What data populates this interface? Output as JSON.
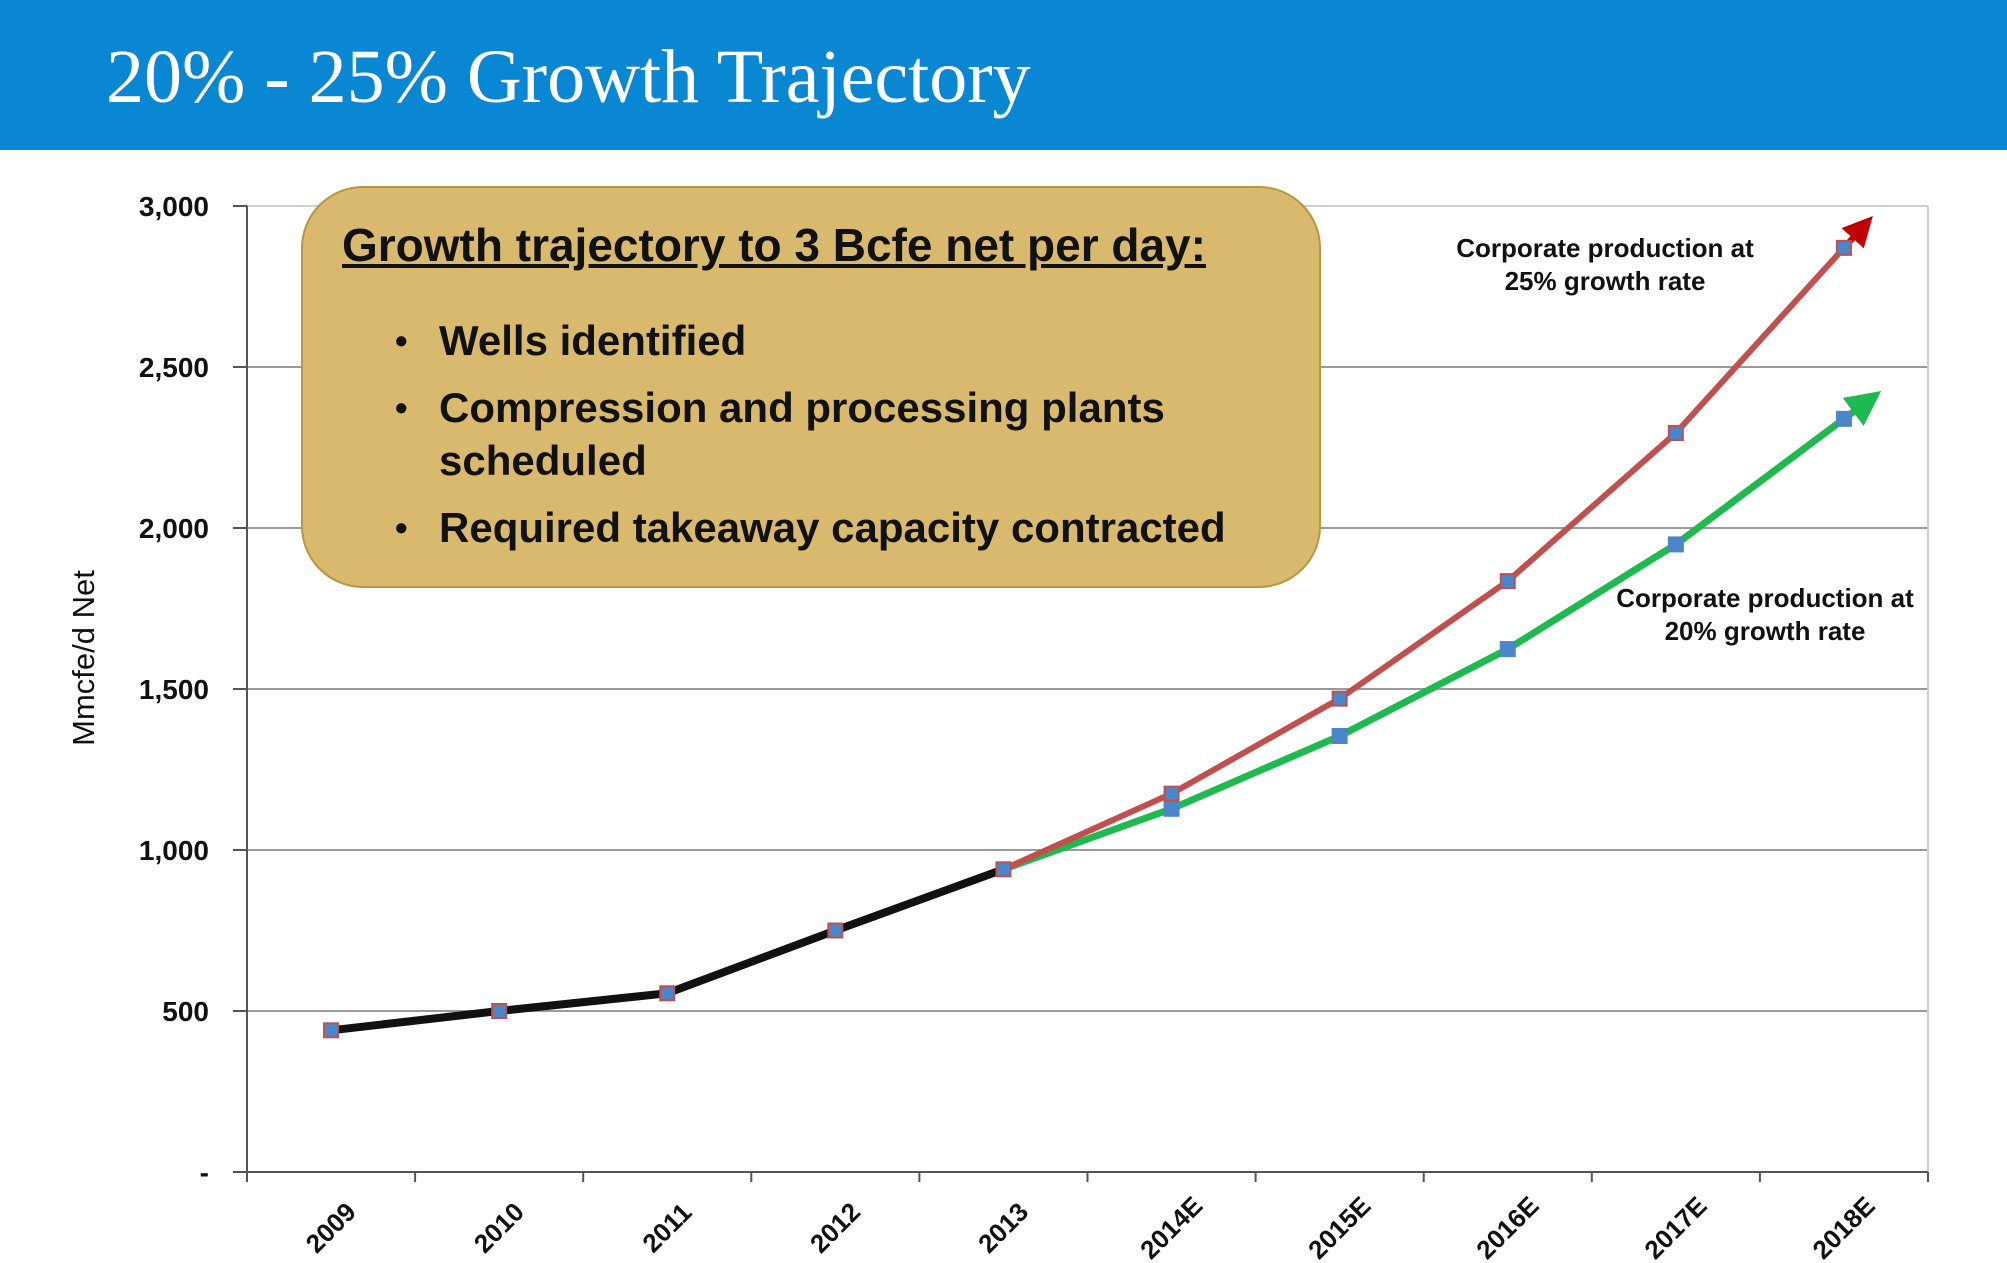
{
  "header": {
    "title": "20% - 25% Growth Trajectory"
  },
  "callout": {
    "heading": "Growth trajectory to 3 Bcfe net per day:",
    "items": [
      "Wells identified",
      "Compression and processing plants scheduled",
      "Required takeaway capacity contracted"
    ]
  },
  "annotations": {
    "rate_25": "Corporate production at 25% growth rate",
    "rate_20": "Corporate production at 20% growth rate"
  },
  "colors": {
    "title_bar": "#0a87d2",
    "historical_line": "#111111",
    "rate_25_line": "#c0504d",
    "rate_20_line": "#1fba4f",
    "marker_fill": "#4a86c8",
    "callout_fill": "#d9b96e"
  },
  "chart_data": {
    "type": "line",
    "ylabel": "Mmcfe/d Net",
    "xlabel": "",
    "ylim": [
      0,
      3000
    ],
    "y_ticks": [
      {
        "value": 0,
        "label": "-"
      },
      {
        "value": 500,
        "label": "500"
      },
      {
        "value": 1000,
        "label": "1,000"
      },
      {
        "value": 1500,
        "label": "1,500"
      },
      {
        "value": 2000,
        "label": "2,000"
      },
      {
        "value": 2500,
        "label": "2,500"
      },
      {
        "value": 3000,
        "label": "3,000"
      }
    ],
    "grid": true,
    "categories": [
      "2009",
      "2010",
      "2011",
      "2012",
      "2013",
      "2014E",
      "2015E",
      "2016E",
      "2017E",
      "2018E"
    ],
    "series": [
      {
        "key": "historical",
        "values": [
          440,
          500,
          555,
          750,
          940,
          null,
          null,
          null,
          null,
          null
        ]
      },
      {
        "key": "rate_25",
        "label_ref": "annotations.rate_25",
        "values": [
          null,
          null,
          null,
          null,
          940,
          1175,
          1470,
          1835,
          2295,
          2870
        ]
      },
      {
        "key": "rate_20",
        "label_ref": "annotations.rate_20",
        "values": [
          null,
          null,
          null,
          null,
          940,
          1128,
          1354,
          1624,
          1949,
          2339
        ]
      }
    ]
  }
}
